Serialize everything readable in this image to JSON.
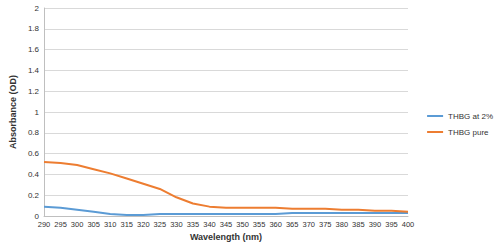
{
  "chart_data": {
    "type": "line",
    "x_label": "Wavelength (nm)",
    "y_label": "Absorbance (OD)",
    "x": [
      290,
      295,
      300,
      305,
      310,
      315,
      320,
      325,
      330,
      335,
      340,
      345,
      350,
      355,
      360,
      365,
      370,
      375,
      380,
      385,
      390,
      395,
      400
    ],
    "series": [
      {
        "name": "THBG at 2%",
        "color": "#5b9bd5",
        "values": [
          0.09,
          0.08,
          0.06,
          0.04,
          0.02,
          0.01,
          0.01,
          0.02,
          0.02,
          0.02,
          0.02,
          0.02,
          0.02,
          0.02,
          0.02,
          0.03,
          0.03,
          0.03,
          0.03,
          0.03,
          0.03,
          0.03,
          0.03
        ]
      },
      {
        "name": "THBG pure",
        "color": "#ed7d31",
        "values": [
          0.52,
          0.51,
          0.49,
          0.45,
          0.41,
          0.36,
          0.31,
          0.26,
          0.18,
          0.12,
          0.09,
          0.08,
          0.08,
          0.08,
          0.08,
          0.07,
          0.07,
          0.07,
          0.06,
          0.06,
          0.05,
          0.05,
          0.04
        ]
      }
    ],
    "xlim": [
      290,
      400
    ],
    "xticks": [
      290,
      295,
      300,
      305,
      310,
      315,
      320,
      325,
      330,
      335,
      340,
      345,
      350,
      355,
      360,
      365,
      370,
      375,
      380,
      385,
      390,
      395,
      400
    ],
    "ylim": [
      0,
      2
    ],
    "yticks": [
      0,
      0.2,
      0.4,
      0.6,
      0.8,
      1,
      1.2,
      1.4,
      1.6,
      1.8,
      2
    ],
    "grid": true,
    "legend": "right"
  }
}
